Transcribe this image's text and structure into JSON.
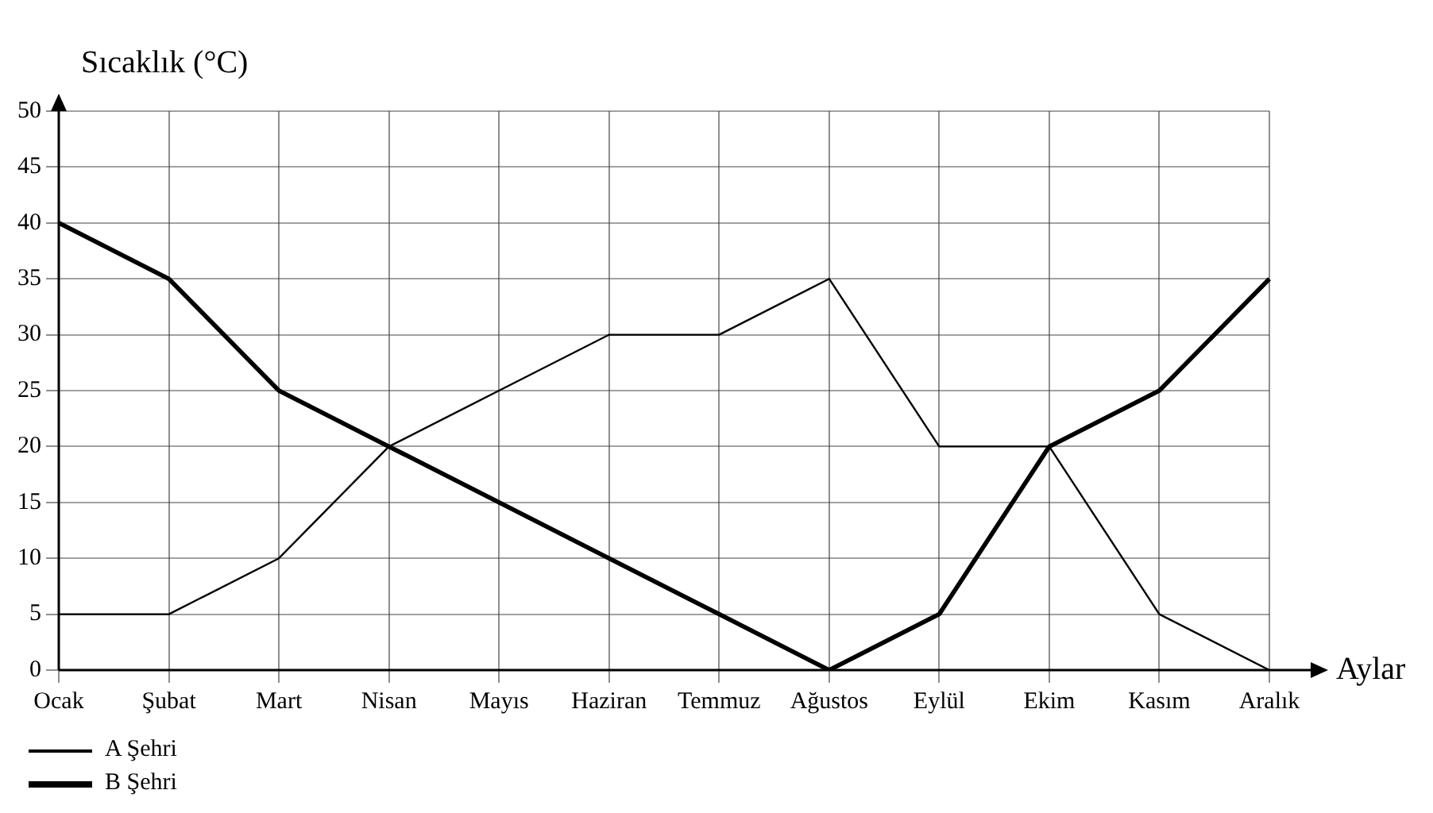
{
  "chart_data": {
    "type": "line",
    "xlabel": "Aylar",
    "ylabel": "Sıcaklık (°C)",
    "categories": [
      "Ocak",
      "Şubat",
      "Mart",
      "Nisan",
      "Mayıs",
      "Haziran",
      "Temmuz",
      "Ağustos",
      "Eylül",
      "Ekim",
      "Kasım",
      "Aralık"
    ],
    "series": [
      {
        "name": "A Şehri",
        "color": "#000000",
        "values": [
          5,
          5,
          10,
          20,
          25,
          30,
          30,
          35,
          20,
          20,
          5,
          0
        ]
      },
      {
        "name": "B Şehri",
        "color": "#000000",
        "values": [
          40,
          35,
          25,
          20,
          15,
          10,
          5,
          0,
          5,
          20,
          25,
          35
        ]
      }
    ],
    "ylim": [
      0,
      50
    ],
    "yticks": [
      0,
      5,
      10,
      15,
      20,
      25,
      30,
      35,
      40,
      45,
      50
    ],
    "grid": true,
    "legend": "bottom left",
    "marker": "none",
    "line_style": "solid"
  }
}
